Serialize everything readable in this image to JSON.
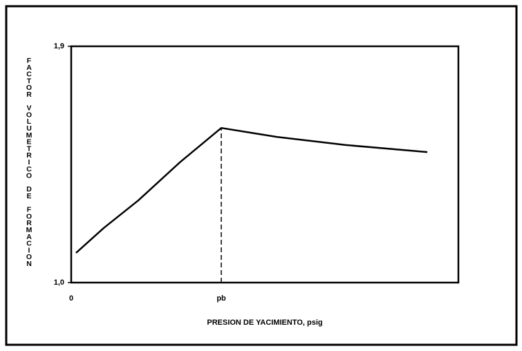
{
  "chart_data": {
    "type": "line",
    "xlabel": "PRESION DE YACIMIENTO, psig",
    "ylabel": "FACTOR VOLUMETRICO DE FORMACION",
    "x": [
      0.032,
      0.217,
      0.447,
      0.724,
      1,
      1.369,
      1.83,
      2.373
    ],
    "series": [
      {
        "color": "#000000",
        "values": [
          1.113,
          1.208,
          1.313,
          1.458,
          1.589,
          1.555,
          1.524,
          1.497
        ]
      }
    ],
    "xlim": [
      0,
      2.58
    ],
    "xticks": [
      0,
      {
        "value": 1,
        "label": "pb"
      }
    ],
    "ylim": [
      1,
      1.9
    ],
    "yticks": [
      {
        "value": 1,
        "label": "1,0"
      },
      {
        "value": 1.9,
        "label": "1,9"
      }
    ]
  }
}
